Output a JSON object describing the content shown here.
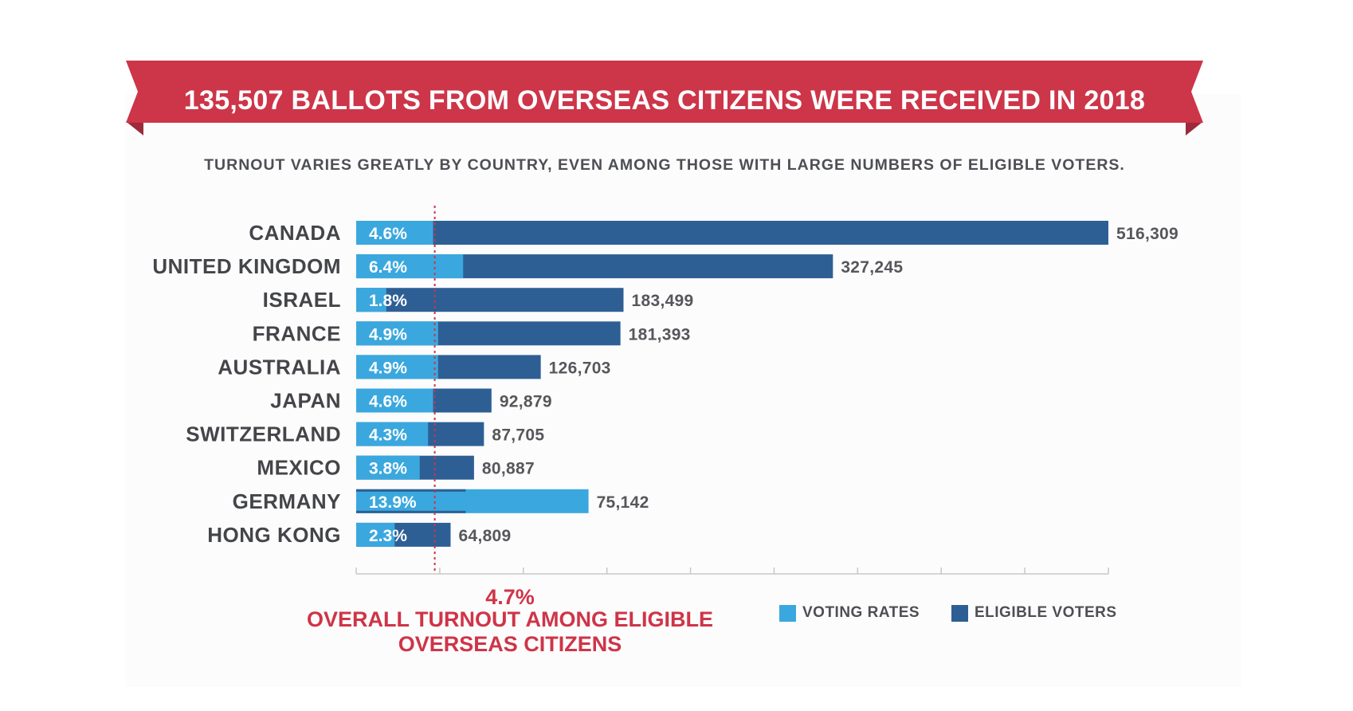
{
  "banner": {
    "title": "135,507 BALLOTS FROM OVERSEAS CITIZENS WERE RECEIVED IN 2018"
  },
  "subtitle": "TURNOUT VARIES GREATLY BY COUNTRY, EVEN AMONG THOSE WITH LARGE NUMBERS OF ELIGIBLE VOTERS.",
  "colors": {
    "banner": "#cd3549",
    "banner_fold": "#9c2a3a",
    "voting_rates": "#3aa8de",
    "eligible_voters": "#2d5f95",
    "overall_line": "#cf3448"
  },
  "overall": {
    "value": "4.7%",
    "label": "OVERALL TURNOUT AMONG ELIGIBLE OVERSEAS CITIZENS",
    "rate": 4.7
  },
  "legend": {
    "voting_rates": "VOTING RATES",
    "eligible_voters": "ELIGIBLE VOTERS"
  },
  "chart_data": {
    "type": "bar",
    "orientation": "horizontal",
    "categories": [
      "CANADA",
      "UNITED KINGDOM",
      "ISRAEL",
      "FRANCE",
      "AUSTRALIA",
      "JAPAN",
      "SWITZERLAND",
      "MEXICO",
      "GERMANY",
      "HONG KONG"
    ],
    "series": [
      {
        "name": "ELIGIBLE VOTERS",
        "values": [
          516309,
          327245,
          183499,
          181393,
          126703,
          92879,
          87705,
          80887,
          75142,
          64809
        ],
        "labels": [
          "516,309",
          "327,245",
          "183,499",
          "181,393",
          "126,703",
          "92,879",
          "87,705",
          "80,887",
          "75,142",
          "64,809"
        ]
      },
      {
        "name": "VOTING RATES",
        "values": [
          4.6,
          6.4,
          1.8,
          4.9,
          4.9,
          4.6,
          4.3,
          3.8,
          13.9,
          2.3
        ],
        "labels": [
          "4.6%",
          "6.4%",
          "1.8%",
          "4.9%",
          "4.9%",
          "4.6%",
          "4.3%",
          "3.8%",
          "13.9%",
          "2.3%"
        ]
      }
    ],
    "rate_axis_range": [
      0,
      45
    ],
    "reference_line": 4.7,
    "legend_position": "bottom-right",
    "grid": false
  }
}
